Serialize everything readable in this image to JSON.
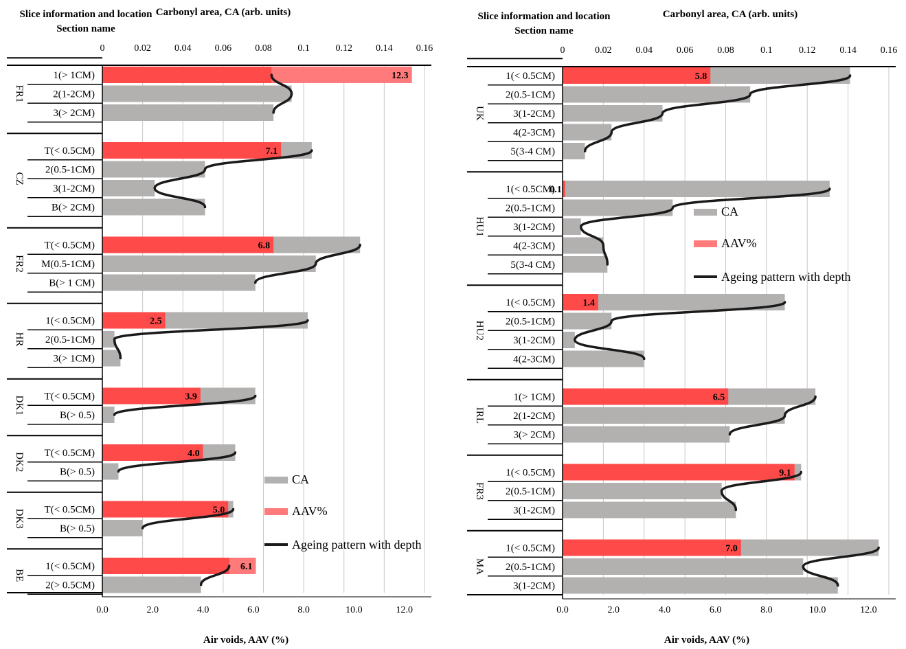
{
  "chart_data": [
    {
      "type": "bar",
      "title_left": "Slice information and location",
      "title_left_2": "Section name",
      "top_axis_label": "Carbonyl area, CA (arb. units)",
      "bottom_axis_label": "Air voids, AAV (%)",
      "ca_ticks": [
        "0",
        "0.02",
        "0.04",
        "0.06",
        "0.08",
        "0.1",
        "0.12",
        "0.14",
        "0.16"
      ],
      "aav_ticks": [
        "0.0",
        "2.0",
        "4.0",
        "6.0",
        "8.0",
        "10.0",
        "12.0"
      ],
      "ca_range": [
        0,
        0.16
      ],
      "aav_range": [
        0,
        12.8
      ],
      "legend": [
        "CA",
        "AAV%",
        "Ageing pattern with depth"
      ],
      "groups": [
        {
          "name": "FR1",
          "slices": [
            {
              "label": "1(> 1CM)",
              "ca": 0.084,
              "aav": 12.3,
              "aav_label": "12.3"
            },
            {
              "label": "2(1-2CM)",
              "ca": 0.094
            },
            {
              "label": "3(> 2CM)",
              "ca": 0.085
            }
          ]
        },
        {
          "name": "CZ",
          "slices": [
            {
              "label": "T(< 0.5CM)",
              "ca": 0.104,
              "aav": 7.1,
              "aav_label": "7.1"
            },
            {
              "label": "2(0.5-1CM)",
              "ca": 0.051
            },
            {
              "label": "3(1-2CM)",
              "ca": 0.026
            },
            {
              "label": "B(> 2CM)",
              "ca": 0.051
            }
          ]
        },
        {
          "name": "FR2",
          "slices": [
            {
              "label": "T(< 0.5CM)",
              "ca": 0.128,
              "aav": 6.8,
              "aav_label": "6.8"
            },
            {
              "label": "M(0.5-1CM)",
              "ca": 0.106
            },
            {
              "label": "B(> 1 CM)",
              "ca": 0.076
            }
          ]
        },
        {
          "name": "HR",
          "slices": [
            {
              "label": "1(< 0.5CM)",
              "ca": 0.102,
              "aav": 2.5,
              "aav_label": "2.5"
            },
            {
              "label": "2(0.5-1CM)",
              "ca": 0.006
            },
            {
              "label": "3(> 1CM)",
              "ca": 0.009
            }
          ]
        },
        {
          "name": "DK1",
          "slices": [
            {
              "label": "T(< 0.5CM)",
              "ca": 0.076,
              "aav": 3.9,
              "aav_label": "3.9"
            },
            {
              "label": "B(> 0.5)",
              "ca": 0.006
            }
          ]
        },
        {
          "name": "DK2",
          "slices": [
            {
              "label": "T(< 0.5CM)",
              "ca": 0.066,
              "aav": 4.0,
              "aav_label": "4.0"
            },
            {
              "label": "B(> 0.5)",
              "ca": 0.008
            }
          ]
        },
        {
          "name": "DK3",
          "slices": [
            {
              "label": "T(< 0.5CM)",
              "ca": 0.065,
              "aav": 5.0,
              "aav_label": "5.0"
            },
            {
              "label": "B(> 0.5)",
              "ca": 0.02
            }
          ]
        },
        {
          "name": "BE",
          "slices": [
            {
              "label": "1(< 0.5CM)",
              "ca": 0.063,
              "aav": 6.1,
              "aav_label": "6.1"
            },
            {
              "label": "2(> 0.5CM)",
              "ca": 0.049
            }
          ]
        }
      ]
    },
    {
      "type": "bar",
      "title_left": "Slice information and location",
      "title_left_2": "Section name",
      "top_axis_label": "Carbonyl area, CA (arb. units)",
      "bottom_axis_label": "Air voids, AAV (%)",
      "ca_ticks": [
        "0",
        "0.02",
        "0.04",
        "0.06",
        "0.08",
        "0.1",
        "0.12",
        "0.14",
        "0.16"
      ],
      "aav_ticks": [
        "0.0",
        "2.0",
        "4.0",
        "6.0",
        "8.0",
        "10.0",
        "12.0"
      ],
      "ca_range": [
        0,
        0.16
      ],
      "aav_range": [
        0,
        12.8
      ],
      "legend": [
        "CA",
        "AAV%",
        "Ageing pattern with depth"
      ],
      "groups": [
        {
          "name": "UK",
          "slices": [
            {
              "label": "1(< 0.5CM)",
              "ca": 0.141,
              "aav": 5.8,
              "aav_label": "5.8"
            },
            {
              "label": "2(0.5-1CM)",
              "ca": 0.092
            },
            {
              "label": "3(1-2CM)",
              "ca": 0.049
            },
            {
              "label": "4(2-3CM)",
              "ca": 0.024
            },
            {
              "label": "5(3-4 CM)",
              "ca": 0.011
            }
          ]
        },
        {
          "name": "HU1",
          "slices": [
            {
              "label": "1(< 0.5CM)",
              "ca": 0.131,
              "aav": 0.1,
              "aav_label": "0.1"
            },
            {
              "label": "2(0.5-1CM)",
              "ca": 0.054
            },
            {
              "label": "3(1-2CM)",
              "ca": 0.009
            },
            {
              "label": "4(2-3CM)",
              "ca": 0.02
            },
            {
              "label": "5(3-4 CM)",
              "ca": 0.022
            }
          ]
        },
        {
          "name": "HU2",
          "slices": [
            {
              "label": "1(< 0.5CM)",
              "ca": 0.109,
              "aav": 1.4,
              "aav_label": "1.4"
            },
            {
              "label": "2(0.5-1CM)",
              "ca": 0.024
            },
            {
              "label": "3(1-2CM)",
              "ca": 0.006
            },
            {
              "label": "4(2-3CM)",
              "ca": 0.04
            }
          ]
        },
        {
          "name": "IRL",
          "slices": [
            {
              "label": "1(> 1CM)",
              "ca": 0.124,
              "aav": 6.5,
              "aav_label": "6.5"
            },
            {
              "label": "2(1-2CM)",
              "ca": 0.109
            },
            {
              "label": "3(> 2CM)",
              "ca": 0.082
            }
          ]
        },
        {
          "name": "FR3",
          "slices": [
            {
              "label": "1(< 0.5CM)",
              "ca": 0.117,
              "aav": 9.1,
              "aav_label": "9.1"
            },
            {
              "label": "2(0.5-1CM)",
              "ca": 0.078
            },
            {
              "label": "3(1-2CM)",
              "ca": 0.085
            }
          ]
        },
        {
          "name": "MA",
          "slices": [
            {
              "label": "1(< 0.5CM)",
              "ca": 0.155,
              "aav": 7.0,
              "aav_label": "7.0"
            },
            {
              "label": "2(0.5-1CM)",
              "ca": 0.118
            },
            {
              "label": "3(1-2CM)",
              "ca": 0.135
            }
          ]
        }
      ]
    }
  ],
  "colors": {
    "ca_bar": "#b3b0b0",
    "aav_bar": "#ff4a4a",
    "aav_bar_light": "#ff7a7a",
    "ageing_line": "#1a1a1a",
    "gridline": "#c8c8c8"
  }
}
